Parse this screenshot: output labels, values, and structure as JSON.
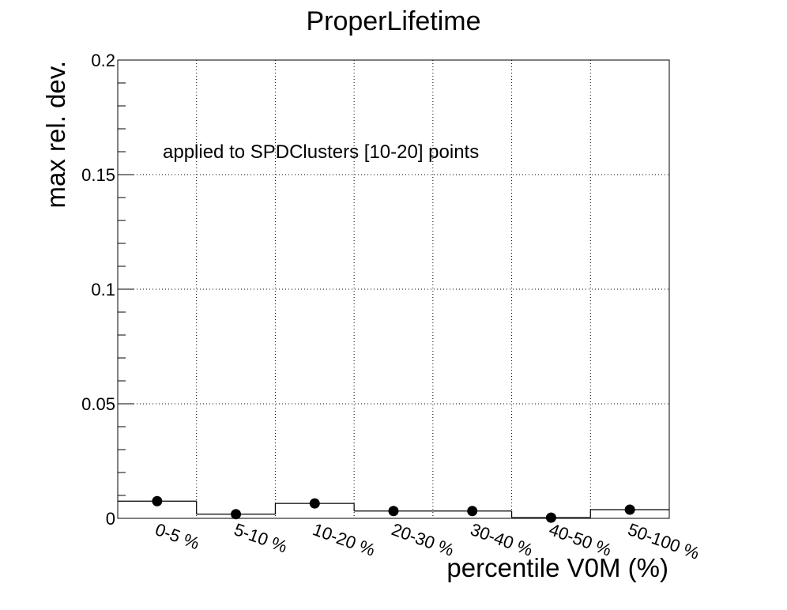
{
  "chart_data": {
    "type": "scatter",
    "title": "ProperLifetime",
    "xlabel": "percentile V0M (%)",
    "ylabel": "max rel. dev.",
    "annotation": "applied to SPDClusters [10-20] points",
    "categories": [
      "0-5 %",
      "5-10 %",
      "10-20 %",
      "20-30 %",
      "30-40 %",
      "40-50 %",
      "50-100 %"
    ],
    "series": [
      {
        "style": "histogram-steps",
        "values": [
          0.0075,
          0.0018,
          0.0065,
          0.0032,
          0.0032,
          0.0003,
          0.0038
        ]
      },
      {
        "style": "markers",
        "values": [
          0.0075,
          0.0018,
          0.0065,
          0.0032,
          0.0032,
          0.0003,
          0.0038
        ]
      }
    ],
    "yticks": [
      "0",
      "0.05",
      "0.1",
      "0.15",
      "0.2"
    ],
    "ylim": [
      0,
      0.2
    ],
    "grid": true,
    "colors": {
      "line": "#000000",
      "marker": "#000000",
      "grid": "#000000"
    }
  }
}
